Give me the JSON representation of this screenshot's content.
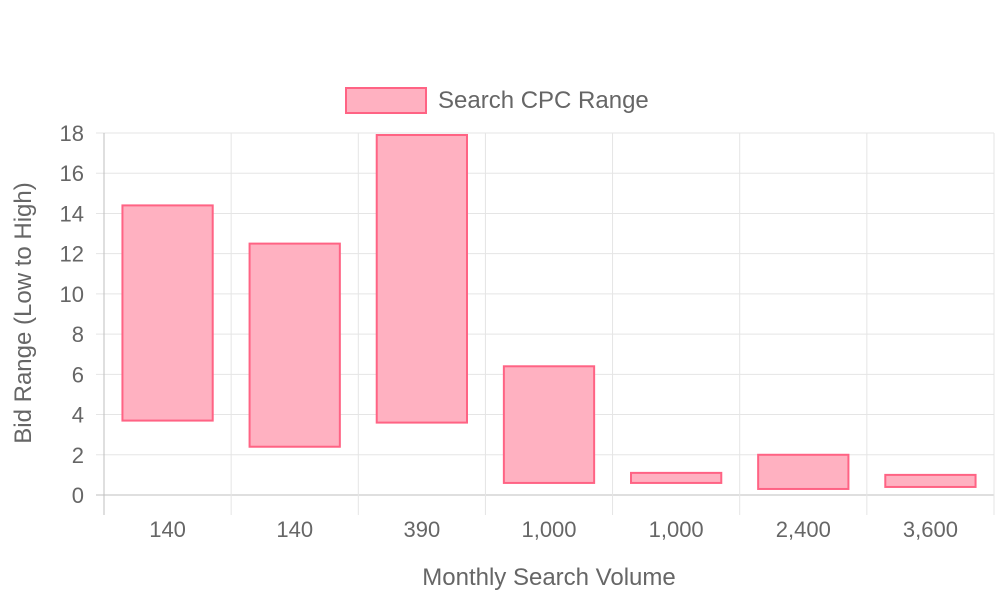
{
  "chart_data": {
    "type": "bar",
    "categories": [
      "140",
      "140",
      "390",
      "1,000",
      "1,000",
      "2,400",
      "3,600"
    ],
    "series": [
      {
        "name": "Search CPC Range",
        "ranges": [
          [
            3.7,
            14.4
          ],
          [
            2.4,
            12.5
          ],
          [
            3.6,
            17.9
          ],
          [
            0.6,
            6.4
          ],
          [
            0.6,
            1.1
          ],
          [
            0.3,
            2.0
          ],
          [
            0.4,
            1.0
          ]
        ]
      }
    ],
    "xlabel": "Monthly Search Volume",
    "ylabel": "Bid Range (Low to High)",
    "ylim": [
      0,
      18
    ],
    "yticks": [
      0,
      2,
      4,
      6,
      8,
      10,
      12,
      14,
      16,
      18
    ],
    "grid": true,
    "legend_position": "top-center",
    "colors": {
      "bar_fill": "#ffb1c1",
      "bar_border": "#ff6384",
      "grid": "#e5e5e5",
      "axis": "#bfbfbf",
      "text": "#666666"
    }
  }
}
